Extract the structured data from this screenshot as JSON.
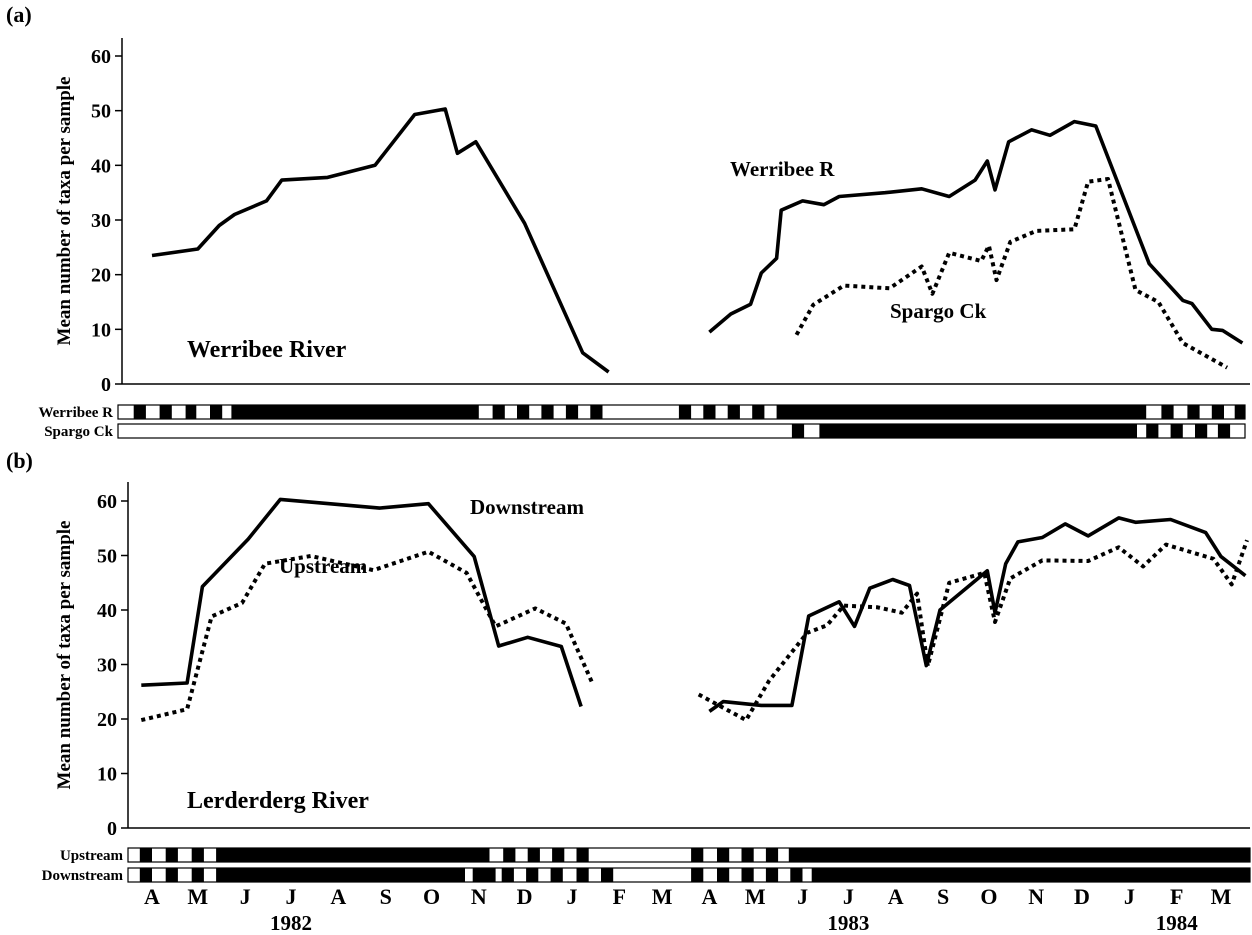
{
  "chart_data": [
    {
      "panel": "(a)",
      "type": "line",
      "ylabel": "Mean number of taxa per sample",
      "ylim": [
        0,
        60
      ],
      "y_ticks": [
        "0",
        "10",
        "20",
        "30",
        "40",
        "50",
        "60"
      ],
      "annotation": "Werribee River",
      "series": [
        {
          "name": "Werribee R",
          "style": "solid",
          "color": "#000000",
          "segments": [
            [
              [
                "1982-04-01",
                23.5
              ],
              [
                "1982-05-01",
                24.7
              ],
              [
                "1982-05-15",
                29
              ],
              [
                "1982-05-25",
                31
              ],
              [
                "1982-06-15",
                33.5
              ],
              [
                "1982-06-25",
                37.3
              ],
              [
                "1982-07-25",
                37.8
              ],
              [
                "1982-08-25",
                40
              ],
              [
                "1982-09-20",
                49.3
              ],
              [
                "1982-10-10",
                50.3
              ],
              [
                "1982-10-18",
                42.2
              ],
              [
                "1982-10-30",
                44.3
              ],
              [
                "1982-12-01",
                29.4
              ],
              [
                "1983-01-08",
                5.7
              ],
              [
                "1983-01-25",
                2.2
              ]
            ],
            [
              [
                "1983-04-01",
                9.5
              ],
              [
                "1983-04-15",
                12.8
              ],
              [
                "1983-04-28",
                14.6
              ],
              [
                "1983-05-05",
                20.3
              ],
              [
                "1983-05-15",
                23
              ],
              [
                "1983-05-18",
                31.8
              ],
              [
                "1983-06-01",
                33.5
              ],
              [
                "1983-06-15",
                32.8
              ],
              [
                "1983-06-25",
                34.3
              ],
              [
                "1983-07-25",
                35
              ],
              [
                "1983-08-18",
                35.7
              ],
              [
                "1983-09-05",
                34.3
              ],
              [
                "1983-09-22",
                37.3
              ],
              [
                "1983-09-30",
                40.8
              ],
              [
                "1983-10-05",
                35.5
              ],
              [
                "1983-10-14",
                44.3
              ],
              [
                "1983-10-29",
                46.5
              ],
              [
                "1983-11-10",
                45.5
              ],
              [
                "1983-11-26",
                48
              ],
              [
                "1983-12-10",
                47.2
              ],
              [
                "1984-01-14",
                22
              ],
              [
                "1984-02-05",
                15.3
              ],
              [
                "1984-02-11",
                14.7
              ],
              [
                "1984-02-24",
                10
              ],
              [
                "1984-03-02",
                9.8
              ],
              [
                "1984-03-15",
                7.5
              ]
            ]
          ]
        },
        {
          "name": "Spargo Ck",
          "style": "dotted",
          "color": "#000000",
          "segments": [
            [
              [
                "1983-05-28",
                9
              ],
              [
                "1983-06-08",
                14.5
              ],
              [
                "1983-06-28",
                18
              ],
              [
                "1983-07-28",
                17.5
              ],
              [
                "1983-08-18",
                21.5
              ],
              [
                "1983-08-25",
                16.5
              ],
              [
                "1983-09-05",
                24
              ],
              [
                "1983-09-26",
                22.5
              ],
              [
                "1983-10-01",
                25.3
              ],
              [
                "1983-10-06",
                19
              ],
              [
                "1983-10-15",
                26
              ],
              [
                "1983-11-01",
                28
              ],
              [
                "1983-11-26",
                28.3
              ],
              [
                "1983-12-05",
                37
              ],
              [
                "1983-12-18",
                37.5
              ],
              [
                "1984-01-05",
                17.2
              ],
              [
                "1984-01-20",
                15
              ],
              [
                "1984-02-05",
                7.5
              ],
              [
                "1984-03-05",
                3
              ]
            ]
          ]
        }
      ],
      "bars": [
        {
          "label": "Werribee R",
          "blocks": [
            [
              "1982-03-20",
              "1982-03-28"
            ],
            [
              "1982-04-06",
              "1982-04-14"
            ],
            [
              "1982-04-23",
              "1982-04-30"
            ],
            [
              "1982-05-09",
              "1982-05-17"
            ],
            [
              "1982-05-23",
              "1982-11-01"
            ],
            [
              "1982-11-10",
              "1982-11-18"
            ],
            [
              "1982-11-26",
              "1982-12-04"
            ],
            [
              "1982-12-12",
              "1982-12-20"
            ],
            [
              "1982-12-28",
              "1983-01-05"
            ],
            [
              "1983-01-13",
              "1983-01-21"
            ],
            [
              "1983-03-12",
              "1983-03-20"
            ],
            [
              "1983-03-28",
              "1983-04-05"
            ],
            [
              "1983-04-13",
              "1983-04-21"
            ],
            [
              "1983-04-29",
              "1983-05-07"
            ],
            [
              "1983-05-15",
              "1984-01-12"
            ],
            [
              "1984-01-22",
              "1984-01-30"
            ],
            [
              "1984-02-08",
              "1984-02-16"
            ],
            [
              "1984-02-24",
              "1984-03-03"
            ],
            [
              "1984-03-10",
              "1984-03-18"
            ]
          ]
        },
        {
          "label": "Spargo Ck",
          "blocks": [
            [
              "1983-05-25",
              "1983-06-02"
            ],
            [
              "1983-06-12",
              "1984-01-06"
            ],
            [
              "1984-01-12",
              "1984-01-20"
            ],
            [
              "1984-01-28",
              "1984-02-05"
            ],
            [
              "1984-02-13",
              "1984-02-21"
            ],
            [
              "1984-02-28",
              "1984-03-07"
            ]
          ]
        }
      ]
    },
    {
      "panel": "(b)",
      "type": "line",
      "ylabel": "Mean number of taxa per sample",
      "ylim": [
        0,
        60
      ],
      "y_ticks": [
        "0",
        "10",
        "20",
        "30",
        "40",
        "50",
        "60"
      ],
      "annotation": "Lerderderg River",
      "series": [
        {
          "name": "Downstream",
          "style": "solid",
          "color": "#000000",
          "segments": [
            [
              [
                "1982-03-25",
                26.2
              ],
              [
                "1982-04-24",
                26.6
              ],
              [
                "1982-05-04",
                44.3
              ],
              [
                "1982-06-03",
                53
              ],
              [
                "1982-06-24",
                60.3
              ],
              [
                "1982-08-28",
                58.7
              ],
              [
                "1982-09-29",
                59.5
              ],
              [
                "1982-10-29",
                49.8
              ],
              [
                "1982-11-14",
                33.4
              ],
              [
                "1982-12-03",
                35
              ],
              [
                "1982-12-25",
                33.3
              ],
              [
                "1983-01-07",
                22.3
              ]
            ],
            [
              [
                "1983-04-01",
                21.4
              ],
              [
                "1983-04-10",
                23.2
              ],
              [
                "1983-05-05",
                22.5
              ],
              [
                "1983-05-25",
                22.5
              ],
              [
                "1983-06-05",
                38.9
              ],
              [
                "1983-06-25",
                41.5
              ],
              [
                "1983-07-05",
                37
              ],
              [
                "1983-07-15",
                44
              ],
              [
                "1983-07-30",
                45.6
              ],
              [
                "1983-08-10",
                44.5
              ],
              [
                "1983-08-21",
                29.8
              ],
              [
                "1983-08-30",
                40
              ],
              [
                "1983-09-30",
                47.2
              ],
              [
                "1983-10-05",
                39.5
              ],
              [
                "1983-10-12",
                48.5
              ],
              [
                "1983-10-20",
                52.5
              ],
              [
                "1983-11-05",
                53.3
              ],
              [
                "1983-11-20",
                55.8
              ],
              [
                "1983-12-05",
                53.6
              ],
              [
                "1983-12-25",
                56.9
              ],
              [
                "1984-01-05",
                56.1
              ],
              [
                "1984-01-28",
                56.6
              ],
              [
                "1984-02-20",
                54.2
              ],
              [
                "1984-03-01",
                49.8
              ],
              [
                "1984-03-17",
                46.3
              ]
            ]
          ]
        },
        {
          "name": "Upstream",
          "style": "dotted",
          "color": "#000000",
          "segments": [
            [
              [
                "1982-03-25",
                19.8
              ],
              [
                "1982-04-24",
                21.8
              ],
              [
                "1982-05-10",
                38.8
              ],
              [
                "1982-05-30",
                41.3
              ],
              [
                "1982-06-14",
                48.5
              ],
              [
                "1982-07-14",
                49.9
              ],
              [
                "1982-08-24",
                47.3
              ],
              [
                "1982-09-29",
                50.7
              ],
              [
                "1982-10-24",
                46.8
              ],
              [
                "1982-11-12",
                37
              ],
              [
                "1982-12-08",
                40.3
              ],
              [
                "1982-12-28",
                37.5
              ],
              [
                "1983-01-14",
                26.8
              ]
            ],
            [
              [
                "1983-03-25",
                24.5
              ],
              [
                "1983-04-25",
                19.8
              ],
              [
                "1983-05-10",
                27
              ],
              [
                "1983-06-04",
                35.8
              ],
              [
                "1983-06-17",
                37.2
              ],
              [
                "1983-06-28",
                40.8
              ],
              [
                "1983-07-20",
                40.5
              ],
              [
                "1983-08-05",
                39.5
              ],
              [
                "1983-08-15",
                43
              ],
              [
                "1983-08-22",
                29.7
              ],
              [
                "1983-09-05",
                45
              ],
              [
                "1983-09-28",
                46.8
              ],
              [
                "1983-10-05",
                37.8
              ],
              [
                "1983-10-15",
                45.8
              ],
              [
                "1983-11-05",
                49.1
              ],
              [
                "1983-12-05",
                49
              ],
              [
                "1983-12-25",
                51.5
              ],
              [
                "1984-01-10",
                48
              ],
              [
                "1984-01-25",
                52
              ],
              [
                "1984-02-25",
                49.4
              ],
              [
                "1984-03-08",
                44.7
              ],
              [
                "1984-03-18",
                52.8
              ]
            ]
          ]
        }
      ],
      "bars": [
        {
          "label": "Upstream",
          "blocks": [
            [
              "1982-03-24",
              "1982-04-01"
            ],
            [
              "1982-04-10",
              "1982-04-18"
            ],
            [
              "1982-04-27",
              "1982-05-05"
            ],
            [
              "1982-05-13",
              "1982-11-08"
            ],
            [
              "1982-11-17",
              "1982-11-25"
            ],
            [
              "1982-12-03",
              "1982-12-11"
            ],
            [
              "1982-12-19",
              "1982-12-27"
            ],
            [
              "1983-01-04",
              "1983-01-12"
            ],
            [
              "1983-03-20",
              "1983-03-28"
            ],
            [
              "1983-04-06",
              "1983-04-14"
            ],
            [
              "1983-04-22",
              "1983-04-30"
            ],
            [
              "1983-05-08",
              "1983-05-16"
            ],
            [
              "1983-05-23",
              "1984-03-31"
            ]
          ]
        },
        {
          "label": "Downstream",
          "blocks": [
            [
              "1982-03-24",
              "1982-04-01"
            ],
            [
              "1982-04-10",
              "1982-04-18"
            ],
            [
              "1982-04-27",
              "1982-05-05"
            ],
            [
              "1982-05-13",
              "1982-10-23"
            ],
            [
              "1982-10-28",
              "1982-11-12"
            ],
            [
              "1982-11-16",
              "1982-11-24"
            ],
            [
              "1982-12-02",
              "1982-12-10"
            ],
            [
              "1982-12-18",
              "1982-12-26"
            ],
            [
              "1983-01-04",
              "1983-01-12"
            ],
            [
              "1983-01-20",
              "1983-01-28"
            ],
            [
              "1983-03-20",
              "1983-03-28"
            ],
            [
              "1983-04-06",
              "1983-04-14"
            ],
            [
              "1983-04-22",
              "1983-04-30"
            ],
            [
              "1983-05-08",
              "1983-05-16"
            ],
            [
              "1983-05-24",
              "1983-06-01"
            ],
            [
              "1983-06-07",
              "1984-03-31"
            ]
          ]
        }
      ]
    }
  ],
  "x_axis": {
    "month_labels": [
      "A",
      "M",
      "J",
      "J",
      "A",
      "S",
      "O",
      "N",
      "D",
      "J",
      "F",
      "M",
      "A",
      "M",
      "J",
      "J",
      "A",
      "S",
      "O",
      "N",
      "D",
      "J",
      "F",
      "M"
    ],
    "month_dates": [
      "1982-04-01",
      "1982-05-01",
      "1982-06-01",
      "1982-07-01",
      "1982-08-01",
      "1982-09-01",
      "1982-10-01",
      "1982-11-01",
      "1982-12-01",
      "1983-01-01",
      "1983-02-01",
      "1983-03-01",
      "1983-04-01",
      "1983-05-01",
      "1983-06-01",
      "1983-07-01",
      "1983-08-01",
      "1983-09-01",
      "1983-10-01",
      "1983-11-01",
      "1983-12-01",
      "1984-01-01",
      "1984-02-01",
      "1984-03-01"
    ],
    "years": [
      {
        "label": "1982",
        "date": "1982-07-01"
      },
      {
        "label": "1983",
        "date": "1983-07-01"
      },
      {
        "label": "1984",
        "date": "1984-02-01"
      }
    ]
  }
}
